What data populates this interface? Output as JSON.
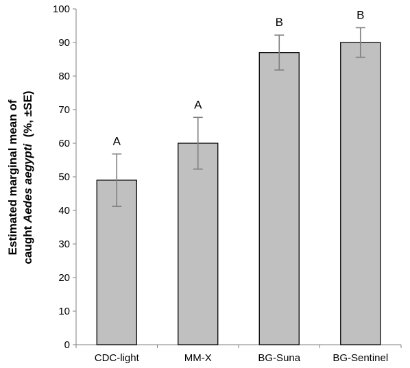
{
  "chart_data": {
    "type": "bar",
    "categories": [
      "CDC-light",
      "MM-X",
      "BG-Suna",
      "BG-Sentinel"
    ],
    "values": [
      49,
      60,
      87,
      90
    ],
    "errors": [
      7.8,
      7.7,
      5.2,
      4.4
    ],
    "significance_labels": [
      "A",
      "A",
      "B",
      "B"
    ],
    "ylabel_line1": "Estimated marginal mean of",
    "ylabel_line2_prefix": "caught ",
    "ylabel_line2_italic": "Aedes aegypti",
    "ylabel_line2_suffix": "  (%, ±SE)",
    "ylim": [
      0,
      100
    ],
    "yticks": [
      0,
      10,
      20,
      30,
      40,
      50,
      60,
      70,
      80,
      90,
      100
    ],
    "grid": false,
    "bar_color": "#c0c0c0",
    "bar_edge_color": "#000000",
    "error_bar_color": "#7f7f7f"
  }
}
